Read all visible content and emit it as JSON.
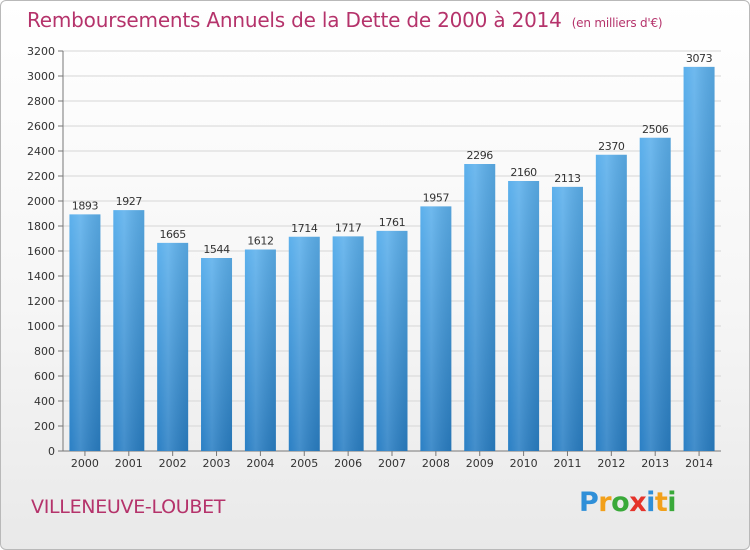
{
  "title": "Remboursements Annuels de la Dette de 2000 à 2014",
  "unit": "(en milliers d'€)",
  "city": "VILLENEUVE-LOUBET",
  "logo": {
    "letters": [
      "P",
      "r",
      "o",
      "x",
      "i",
      "t",
      "i"
    ],
    "colors": [
      "#2f8fd8",
      "#f2a01a",
      "#3aa93a",
      "#e5332a",
      "#2f8fd8",
      "#f2a01a",
      "#3aa93a"
    ]
  },
  "colors": {
    "title": "#b5336b",
    "bar_top": "#5cb0ec",
    "bar_bottom": "#2a7fc4",
    "grid": "#d6d6d6"
  },
  "chart_data": {
    "type": "bar",
    "categories": [
      "2000",
      "2001",
      "2002",
      "2003",
      "2004",
      "2005",
      "2006",
      "2007",
      "2008",
      "2009",
      "2010",
      "2011",
      "2012",
      "2013",
      "2014"
    ],
    "values": [
      1893,
      1927,
      1665,
      1544,
      1612,
      1714,
      1717,
      1761,
      1957,
      2296,
      2160,
      2113,
      2370,
      2506,
      3073
    ],
    "title": "Remboursements Annuels de la Dette de 2000 à 2014",
    "xlabel": "",
    "ylabel": "",
    "ylim": [
      0,
      3200
    ],
    "yticks": [
      0,
      200,
      400,
      600,
      800,
      1000,
      1200,
      1400,
      1600,
      1800,
      2000,
      2200,
      2400,
      2600,
      2800,
      3000,
      3200
    ],
    "grid": true,
    "data_labels": true
  }
}
